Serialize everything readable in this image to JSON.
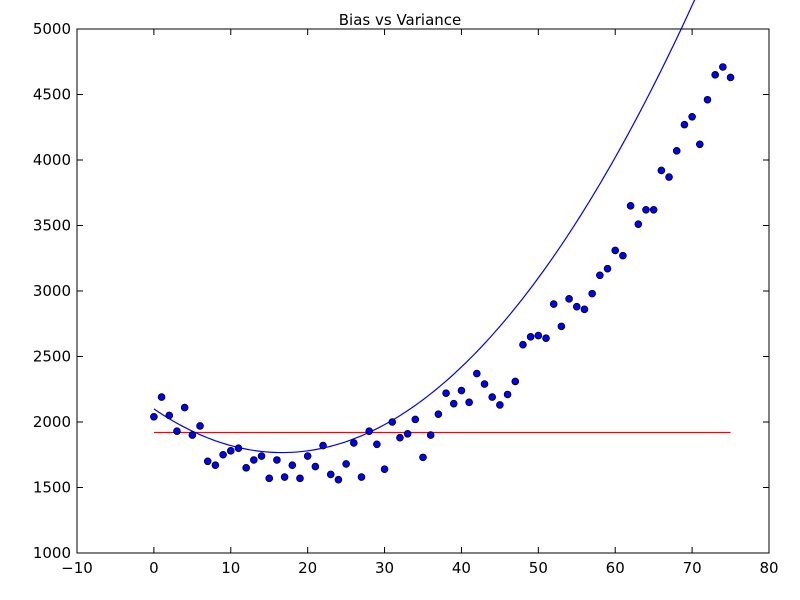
{
  "chart_data": {
    "type": "scatter",
    "title": "Bias vs Variance",
    "xlabel": "",
    "ylabel": "",
    "xlim": [
      -10,
      80
    ],
    "ylim": [
      1000,
      5000
    ],
    "x_ticks": [
      -10,
      0,
      10,
      20,
      30,
      40,
      50,
      60,
      70,
      80
    ],
    "y_ticks": [
      1000,
      1500,
      2000,
      2500,
      3000,
      3500,
      4000,
      4500,
      5000
    ],
    "grid": false,
    "colors": {
      "points": "#0000ff",
      "fit_line": "#0000ff",
      "mean_line": "#ff0000"
    },
    "series": [
      {
        "kind": "scatter",
        "x": [
          0,
          1,
          2,
          3,
          4,
          5,
          6,
          7,
          8,
          9,
          10,
          11,
          12,
          13,
          14,
          15,
          16,
          17,
          18,
          19,
          20,
          21,
          22,
          23,
          24,
          25,
          26,
          27,
          28,
          29,
          30,
          31,
          32,
          33,
          34,
          35,
          36,
          37,
          38,
          39,
          40,
          41,
          42,
          43,
          44,
          45,
          46,
          47,
          48,
          49,
          50,
          51,
          52,
          53,
          54,
          55,
          56,
          57,
          58,
          59,
          60,
          61,
          62,
          63,
          64,
          65,
          66,
          67,
          68,
          69,
          70,
          71,
          72,
          73,
          74,
          75
        ],
        "y": [
          2040,
          2190,
          2050,
          1930,
          2110,
          1900,
          1970,
          1700,
          1670,
          1750,
          1780,
          1800,
          1650,
          1710,
          1740,
          1570,
          1710,
          1580,
          1670,
          1570,
          1740,
          1660,
          1820,
          1600,
          1560,
          1680,
          1840,
          1580,
          1930,
          1830,
          1640,
          2000,
          1880,
          1910,
          2020,
          1730,
          1900,
          2060,
          2220,
          2140,
          2240,
          2150,
          2370,
          2290,
          2190,
          2130,
          2210,
          2310,
          2590,
          2650,
          2660,
          2640,
          2900,
          2730,
          2940,
          2880,
          2860,
          2980,
          3120,
          3170,
          3310,
          3270,
          3650,
          3510,
          3620,
          3620,
          3920,
          3870,
          4070,
          4270,
          4330,
          4120,
          4460,
          4650,
          4710,
          4630
        ]
      },
      {
        "kind": "fit-line",
        "quadratic": [
          2100,
          -40,
          1.2
        ],
        "x_range": [
          0,
          75
        ]
      },
      {
        "kind": "mean-line",
        "y": 1920,
        "x_range": [
          0,
          75
        ]
      }
    ]
  }
}
